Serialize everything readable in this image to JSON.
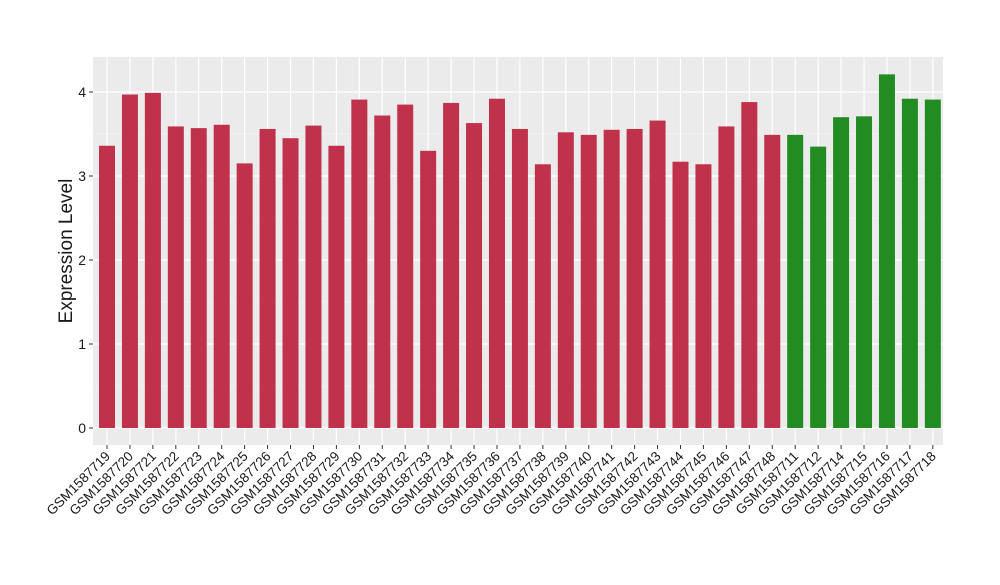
{
  "chart_data": {
    "type": "bar",
    "title": "",
    "xlabel": "",
    "ylabel": "Expression Level",
    "ylim": [
      0,
      4.4
    ],
    "yticks": [
      0,
      1,
      2,
      3,
      4
    ],
    "grid": true,
    "legend": "none",
    "background": "#ebebeb",
    "categories": [
      "GSM1587719",
      "GSM1587720",
      "GSM1587721",
      "GSM1587722",
      "GSM1587723",
      "GSM1587724",
      "GSM1587725",
      "GSM1587726",
      "GSM1587727",
      "GSM1587728",
      "GSM1587729",
      "GSM1587730",
      "GSM1587731",
      "GSM1587732",
      "GSM1587733",
      "GSM1587734",
      "GSM1587735",
      "GSM1587736",
      "GSM1587737",
      "GSM1587738",
      "GSM1587739",
      "GSM1587740",
      "GSM1587741",
      "GSM1587742",
      "GSM1587743",
      "GSM1587744",
      "GSM1587745",
      "GSM1587746",
      "GSM1587747",
      "GSM1587748",
      "GSM1587711",
      "GSM1587712",
      "GSM1587714",
      "GSM1587715",
      "GSM1587716",
      "GSM1587717",
      "GSM1587718"
    ],
    "values": [
      3.36,
      3.97,
      3.99,
      3.59,
      3.57,
      3.61,
      3.15,
      3.56,
      3.45,
      3.6,
      3.36,
      3.91,
      3.72,
      3.85,
      3.3,
      3.87,
      3.63,
      3.92,
      3.56,
      3.14,
      3.52,
      3.49,
      3.55,
      3.56,
      3.66,
      3.17,
      3.14,
      3.59,
      3.88,
      3.49,
      3.49,
      3.35,
      3.7,
      3.71,
      4.21,
      3.92,
      3.91
    ],
    "colors": [
      "#c0314b",
      "#c0314b",
      "#c0314b",
      "#c0314b",
      "#c0314b",
      "#c0314b",
      "#c0314b",
      "#c0314b",
      "#c0314b",
      "#c0314b",
      "#c0314b",
      "#c0314b",
      "#c0314b",
      "#c0314b",
      "#c0314b",
      "#c0314b",
      "#c0314b",
      "#c0314b",
      "#c0314b",
      "#c0314b",
      "#c0314b",
      "#c0314b",
      "#c0314b",
      "#c0314b",
      "#c0314b",
      "#c0314b",
      "#c0314b",
      "#c0314b",
      "#c0314b",
      "#c0314b",
      "#228b22",
      "#228b22",
      "#228b22",
      "#228b22",
      "#228b22",
      "#228b22",
      "#228b22"
    ]
  }
}
